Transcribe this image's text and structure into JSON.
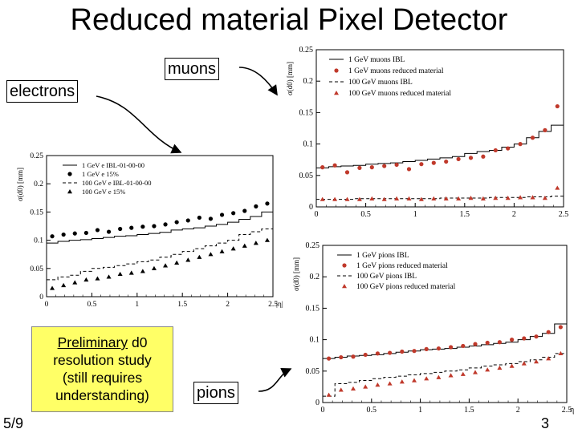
{
  "slide": {
    "title": "Reduced material Pixel Detector",
    "labels": {
      "muons": "muons",
      "electrons": "electrons",
      "pions": "pions"
    },
    "note": {
      "underlined": "Preliminary",
      "rest1": " d0",
      "line2": "resolution study",
      "line3": "(still requires",
      "line4": "understanding)"
    },
    "slide_number": "5/9",
    "page_number": "3",
    "colors": {
      "note_bg": "#ffff66",
      "marker_red": "#c0392b",
      "marker_black": "#000000"
    }
  },
  "chart_data": [
    {
      "id": "electrons",
      "type": "scatter",
      "title": "",
      "xlabel": "|η|",
      "ylabel": "σ(d0) [mm]",
      "xlim": [
        0,
        2.5
      ],
      "ylim": [
        0,
        0.25
      ],
      "xticks": [
        "0",
        "0.5",
        "1",
        "1.5",
        "2",
        "2.5"
      ],
      "yticks": [
        "0",
        "0.05",
        "0.1",
        "0.15",
        "0.2",
        "0.25"
      ],
      "bins": [
        0,
        0.125,
        0.25,
        0.375,
        0.5,
        0.625,
        0.75,
        0.875,
        1.0,
        1.125,
        1.25,
        1.375,
        1.5,
        1.625,
        1.75,
        1.875,
        2.0,
        2.125,
        2.25,
        2.375,
        2.5
      ],
      "marker_color": "#000000",
      "series": [
        {
          "name": "1 GeV e IBL-01-00-00",
          "style": "step-solid",
          "values": [
            0.095,
            0.098,
            0.1,
            0.101,
            0.103,
            0.105,
            0.107,
            0.108,
            0.11,
            0.112,
            0.114,
            0.118,
            0.12,
            0.122,
            0.125,
            0.128,
            0.132,
            0.137,
            0.142,
            0.15
          ]
        },
        {
          "name": "1 GeV e 15%",
          "style": "circle",
          "values": [
            0.107,
            0.11,
            0.112,
            0.113,
            0.118,
            0.115,
            0.12,
            0.122,
            0.124,
            0.125,
            0.128,
            0.132,
            0.135,
            0.14,
            0.138,
            0.145,
            0.148,
            0.152,
            0.16,
            0.165
          ]
        },
        {
          "name": "100 GeV e IBL-01-00-00",
          "style": "step-dashed",
          "values": [
            0.03,
            0.035,
            0.038,
            0.045,
            0.05,
            0.052,
            0.055,
            0.058,
            0.062,
            0.065,
            0.07,
            0.075,
            0.08,
            0.085,
            0.09,
            0.095,
            0.1,
            0.11,
            0.115,
            0.12
          ]
        },
        {
          "name": "100 GeV e 15%",
          "style": "triangle",
          "values": [
            0.015,
            0.02,
            0.025,
            0.03,
            0.032,
            0.035,
            0.04,
            0.042,
            0.045,
            0.05,
            0.055,
            0.06,
            0.065,
            0.07,
            0.075,
            0.08,
            0.085,
            0.09,
            0.095,
            0.1
          ]
        }
      ]
    },
    {
      "id": "muons",
      "type": "scatter",
      "title": "",
      "xlabel": "",
      "ylabel": "σ(d0) [mm]",
      "xlim": [
        0,
        2.5
      ],
      "ylim": [
        0,
        0.25
      ],
      "xticks": [
        "0",
        "0.5",
        "1",
        "1.5",
        "2",
        "2.5"
      ],
      "yticks": [
        "0",
        "0.05",
        "0.1",
        "0.15",
        "0.2",
        "0.25"
      ],
      "bins": [
        0,
        0.125,
        0.25,
        0.375,
        0.5,
        0.625,
        0.75,
        0.875,
        1.0,
        1.125,
        1.25,
        1.375,
        1.5,
        1.625,
        1.75,
        1.875,
        2.0,
        2.125,
        2.25,
        2.375,
        2.5
      ],
      "marker_color": "#c0392b",
      "series": [
        {
          "name": "1 GeV muons IBL",
          "style": "step-solid",
          "values": [
            0.062,
            0.064,
            0.065,
            0.066,
            0.068,
            0.069,
            0.07,
            0.072,
            0.074,
            0.076,
            0.078,
            0.08,
            0.085,
            0.088,
            0.09,
            0.095,
            0.1,
            0.11,
            0.12,
            0.13
          ]
        },
        {
          "name": "1 GeV muons reduced material",
          "style": "circle",
          "values": [
            0.063,
            0.066,
            0.055,
            0.062,
            0.063,
            0.065,
            0.067,
            0.06,
            0.068,
            0.07,
            0.072,
            0.076,
            0.078,
            0.08,
            0.09,
            0.093,
            0.1,
            0.11,
            0.122,
            0.16
          ]
        },
        {
          "name": "100 GeV muons IBL",
          "style": "step-dashed",
          "values": [
            0.012,
            0.012,
            0.012,
            0.013,
            0.013,
            0.013,
            0.013,
            0.013,
            0.013,
            0.013,
            0.014,
            0.014,
            0.014,
            0.014,
            0.015,
            0.015,
            0.015,
            0.016,
            0.016,
            0.017
          ]
        },
        {
          "name": "100 GeV muons reduced material",
          "style": "triangle",
          "values": [
            0.012,
            0.012,
            0.012,
            0.012,
            0.013,
            0.012,
            0.013,
            0.013,
            0.012,
            0.013,
            0.013,
            0.013,
            0.014,
            0.013,
            0.014,
            0.014,
            0.015,
            0.015,
            0.014,
            0.03
          ]
        }
      ]
    },
    {
      "id": "pions",
      "type": "scatter",
      "title": "",
      "xlabel": "η",
      "ylabel": "σ(d0) [mm]",
      "xlim": [
        0,
        2.5
      ],
      "ylim": [
        0,
        0.25
      ],
      "xticks": [
        "0",
        "0.5",
        "1",
        "1.5",
        "2",
        "2.5"
      ],
      "yticks": [
        "0",
        "0.05",
        "0.1",
        "0.15",
        "0.2",
        "0.25"
      ],
      "bins": [
        0,
        0.125,
        0.25,
        0.375,
        0.5,
        0.625,
        0.75,
        0.875,
        1.0,
        1.125,
        1.25,
        1.375,
        1.5,
        1.625,
        1.75,
        1.875,
        2.0,
        2.125,
        2.25,
        2.375,
        2.5
      ],
      "marker_color": "#c0392b",
      "series": [
        {
          "name": "1 GeV pions IBL",
          "style": "step-solid",
          "values": [
            0.07,
            0.072,
            0.074,
            0.075,
            0.076,
            0.078,
            0.08,
            0.082,
            0.084,
            0.085,
            0.086,
            0.088,
            0.09,
            0.092,
            0.094,
            0.096,
            0.1,
            0.105,
            0.11,
            0.125
          ]
        },
        {
          "name": "1 GeV pions reduced material",
          "style": "circle",
          "values": [
            0.07,
            0.072,
            0.073,
            0.076,
            0.078,
            0.079,
            0.081,
            0.082,
            0.085,
            0.086,
            0.088,
            0.09,
            0.093,
            0.095,
            0.096,
            0.1,
            0.102,
            0.105,
            0.112,
            0.12
          ]
        },
        {
          "name": "100 GeV pions IBL",
          "style": "step-dashed",
          "values": [
            0.01,
            0.03,
            0.032,
            0.035,
            0.038,
            0.04,
            0.042,
            0.044,
            0.046,
            0.048,
            0.05,
            0.052,
            0.055,
            0.058,
            0.06,
            0.062,
            0.065,
            0.068,
            0.072,
            0.078
          ]
        },
        {
          "name": "100 GeV pions reduced material",
          "style": "triangle",
          "values": [
            0.012,
            0.02,
            0.022,
            0.025,
            0.028,
            0.03,
            0.033,
            0.035,
            0.038,
            0.04,
            0.043,
            0.045,
            0.048,
            0.052,
            0.055,
            0.058,
            0.062,
            0.065,
            0.07,
            0.078
          ]
        }
      ]
    }
  ]
}
